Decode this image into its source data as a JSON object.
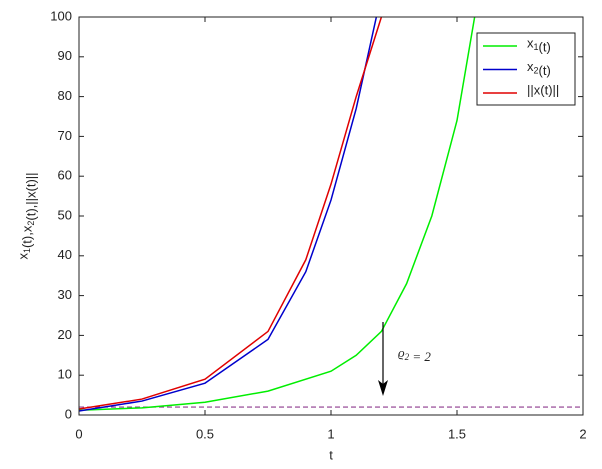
{
  "chart_data": {
    "type": "line",
    "xlabel": "t",
    "ylabel": "x1(t),x2(t),||x(t)||",
    "xlim": [
      0,
      2
    ],
    "ylim": [
      0,
      100
    ],
    "xticks": [
      0,
      0.5,
      1,
      1.5,
      2
    ],
    "yticks": [
      0,
      10,
      20,
      30,
      40,
      50,
      60,
      70,
      80,
      90,
      100
    ],
    "legend": "upper right",
    "series": [
      {
        "name": "x1(t)",
        "color": "#00ee00",
        "x": [
          0,
          0.25,
          0.5,
          0.75,
          1,
          1.1,
          1.2,
          1.3,
          1.4,
          1.5,
          1.57
        ],
        "values": [
          1.2,
          1.8,
          3.2,
          6,
          11,
          15,
          21,
          33,
          50,
          74,
          100
        ]
      },
      {
        "name": "x2(t)",
        "color": "#0000cc",
        "x": [
          0,
          0.25,
          0.5,
          0.75,
          0.9,
          1,
          1.1,
          1.18
        ],
        "values": [
          1,
          3.5,
          8,
          19,
          36,
          54,
          77,
          100
        ]
      },
      {
        "name": "||x(t)||",
        "color": "#e00000",
        "x": [
          0,
          0.25,
          0.5,
          0.75,
          0.9,
          1,
          1.1,
          1.2
        ],
        "values": [
          1.5,
          4,
          9,
          21,
          39,
          58,
          80,
          100
        ]
      }
    ],
    "threshold": {
      "value": 2,
      "color": "#8e3a8e"
    },
    "annotation": "ϱ2 = 2"
  }
}
